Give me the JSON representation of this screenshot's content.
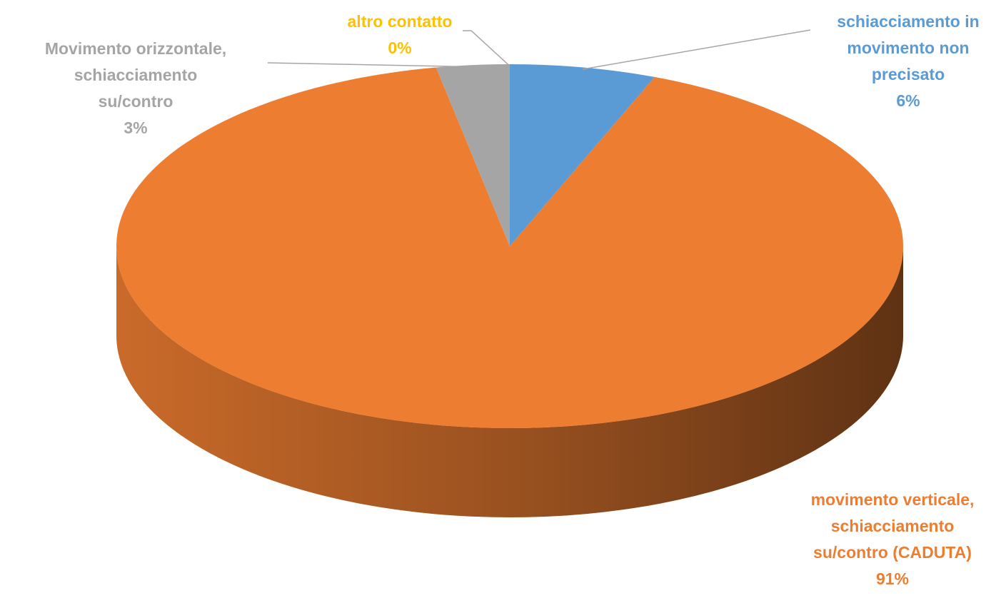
{
  "chart_data": {
    "type": "pie",
    "categories": [
      "schiacciamento in\nmovimento non\nprecisato",
      "movimento verticale,\nschiacciamento\nsu/contro (CADUTA)",
      "Movimento orizzontale,\nschiacciamento\nsu/contro",
      "altro contatto"
    ],
    "values": [
      6,
      91,
      3,
      0
    ],
    "value_labels": [
      "6%",
      "91%",
      "3%",
      "0%"
    ],
    "colors": [
      "#5b9bd5",
      "#ed7d31",
      "#a5a5a5",
      "#ffc000"
    ]
  }
}
